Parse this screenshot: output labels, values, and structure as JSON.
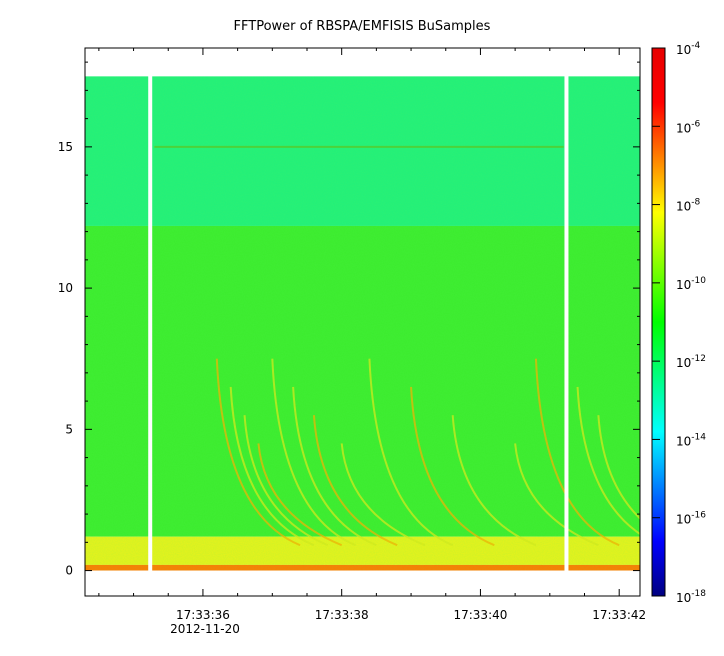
{
  "chart_data": {
    "type": "heatmap",
    "title": "FFTPower of RBSPA/EMFISIS  BuSamples",
    "xlabel": "",
    "ylabel": "",
    "x_ticks": [
      "17:33:36",
      "17:33:38",
      "17:33:40",
      "17:33:42"
    ],
    "x_tick_seconds": [
      36,
      38,
      40,
      42
    ],
    "x_date_label": "2012-11-20",
    "xlim_seconds": [
      34.3,
      42.3
    ],
    "y_ticks": [
      0,
      5,
      10,
      15
    ],
    "ylim": [
      -0.9,
      18.5
    ],
    "data_extent_y": [
      0,
      17.5
    ],
    "gaps_seconds": [
      35.24,
      41.24
    ],
    "colorbar": {
      "scale": "log",
      "range": [
        1e-18,
        0.0001
      ],
      "tick_labels": [
        {
          "base": "10",
          "exp": "-4",
          "value": 0.0001
        },
        {
          "base": "10",
          "exp": "-6",
          "value": 1e-06
        },
        {
          "base": "10",
          "exp": "-8",
          "value": 1e-08
        },
        {
          "base": "10",
          "exp": "-10",
          "value": 1e-10
        },
        {
          "base": "10",
          "exp": "-12",
          "value": 1e-12
        },
        {
          "base": "10",
          "exp": "-14",
          "value": 1e-14
        },
        {
          "base": "10",
          "exp": "-16",
          "value": 1e-16
        },
        {
          "base": "10",
          "exp": "-18",
          "value": 1e-18
        }
      ],
      "colors": [
        "#000080",
        "#0000ff",
        "#0080ff",
        "#00ffff",
        "#00ff80",
        "#00ff00",
        "#80ff00",
        "#ffff00",
        "#ff8000",
        "#ff0000",
        "#e60000"
      ]
    },
    "spectrogram_bands": [
      {
        "y_from": 12.2,
        "y_to": 17.5,
        "log_power": -12.3,
        "color": "#22f07a"
      },
      {
        "y_from": 1.2,
        "y_to": 12.2,
        "log_power": -10.5,
        "color": "#3cec2e"
      },
      {
        "y_from": 0.2,
        "y_to": 1.2,
        "log_power": -8.8,
        "color": "#e6f21c"
      },
      {
        "y_from": 0.0,
        "y_to": 0.2,
        "log_power": -7.0,
        "color": "#ff7a00"
      }
    ],
    "narrowband_line": {
      "y": 15.0,
      "t_from": 35.3,
      "t_to": 41.2,
      "color": "#4cd23a"
    }
  }
}
